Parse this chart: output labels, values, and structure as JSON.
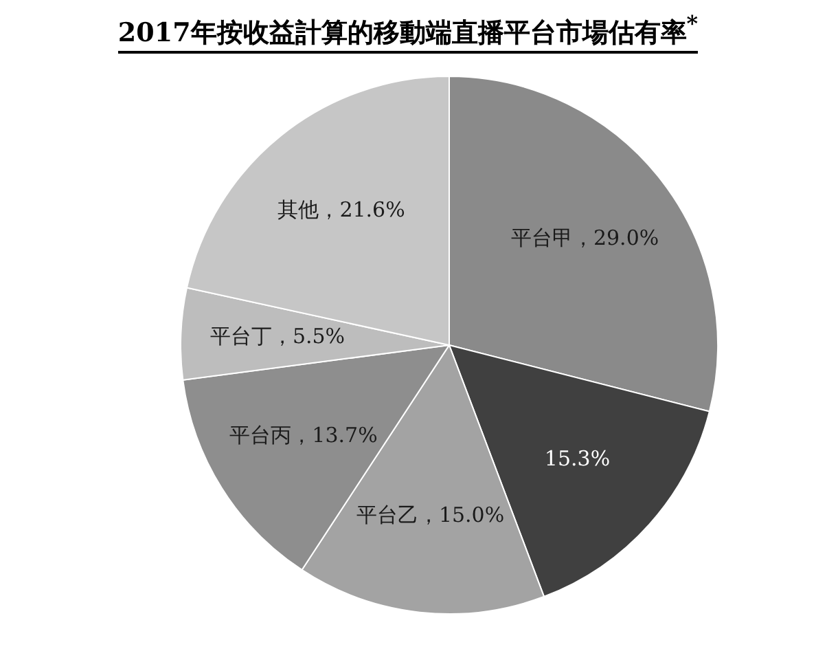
{
  "chart_data": {
    "type": "pie",
    "title": "2017年按收益計算的移動端直播平台市場估有率$^{*}$",
    "categories": [
      "平台甲",
      null,
      "平台乙",
      "平台丙",
      "平台丁",
      "其他"
    ],
    "values": [
      29.0,
      15.3,
      15.0,
      13.7,
      5.5,
      21.6
    ],
    "colors": [
      "#8a8a8a",
      "#404040",
      "#a3a3a3",
      "#8e8e8e",
      "#bdbdbd",
      "#c6c6c6"
    ],
    "value_labels": [
      "29.0%",
      "15.3%",
      "15.0%",
      "13.7%",
      "5.5%",
      "21.6%"
    ],
    "legend": false
  }
}
